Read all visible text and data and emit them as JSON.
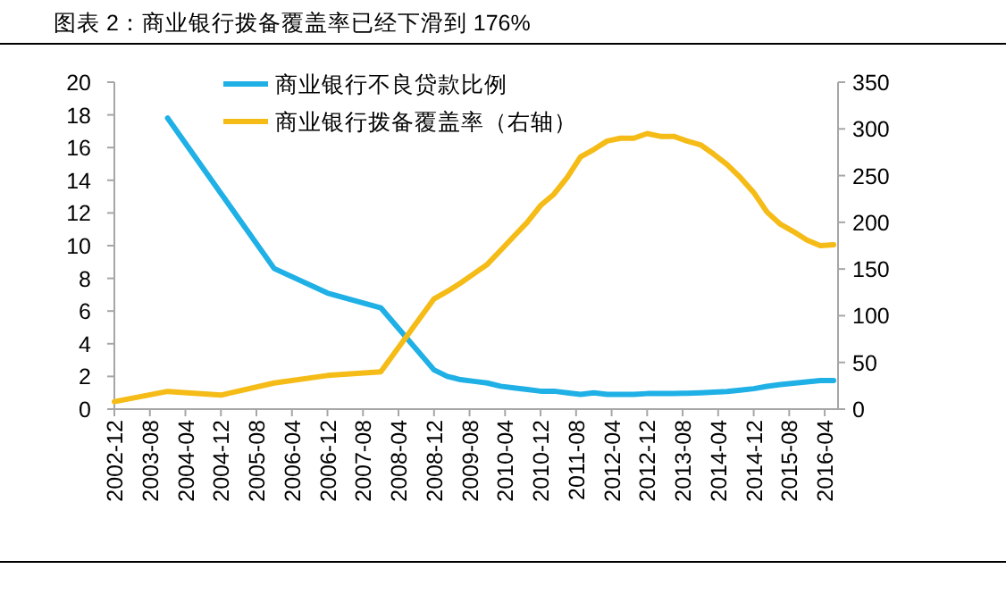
{
  "chart_data": {
    "type": "line",
    "title": "图表 2：商业银行拨备覆盖率已经下滑到 176%",
    "legend": "top",
    "grid": false,
    "marker": "none",
    "line_style": "solid",
    "xlim": [
      "2002-12",
      "2016-07"
    ],
    "xticks": [
      "2002-12",
      "2003-08",
      "2004-04",
      "2004-12",
      "2005-08",
      "2006-04",
      "2006-12",
      "2007-08",
      "2008-04",
      "2008-12",
      "2009-08",
      "2010-04",
      "2010-12",
      "2011-08",
      "2012-04",
      "2012-12",
      "2013-08",
      "2014-04",
      "2014-12",
      "2015-08",
      "2016-04"
    ],
    "ylim": [
      0,
      20
    ],
    "yticks": [
      0,
      2,
      4,
      6,
      8,
      10,
      12,
      14,
      16,
      18,
      20
    ],
    "y2lim": [
      0,
      350
    ],
    "y2ticks": [
      0,
      50,
      100,
      150,
      200,
      250,
      300,
      350
    ],
    "series": [
      {
        "name": "商业银行不良贷款比例",
        "color": "#1fb0e6",
        "x": [
          "2003-12",
          "2004-12",
          "2005-12",
          "2006-12",
          "2007-12",
          "2008-12",
          "2009-03",
          "2009-06",
          "2009-09",
          "2009-12",
          "2010-03",
          "2010-06",
          "2010-09",
          "2010-12",
          "2011-03",
          "2011-06",
          "2011-09",
          "2011-12",
          "2012-03",
          "2012-06",
          "2012-09",
          "2012-12",
          "2013-03",
          "2013-06",
          "2013-09",
          "2013-12",
          "2014-03",
          "2014-06",
          "2014-09",
          "2014-12",
          "2015-03",
          "2015-06",
          "2015-09",
          "2015-12",
          "2016-03",
          "2016-06"
        ],
        "values": [
          17.8,
          13.2,
          8.6,
          7.1,
          6.2,
          2.4,
          2.0,
          1.8,
          1.7,
          1.6,
          1.4,
          1.3,
          1.2,
          1.1,
          1.1,
          1.0,
          0.9,
          1.0,
          0.9,
          0.9,
          0.9,
          0.95,
          0.96,
          0.96,
          0.97,
          1.0,
          1.04,
          1.08,
          1.16,
          1.25,
          1.39,
          1.5,
          1.59,
          1.67,
          1.75,
          1.75
        ]
      },
      {
        "name": "商业银行拨备覆盖率（右轴）",
        "color": "#f5bb16",
        "axis": "y2",
        "x": [
          "2002-12",
          "2003-12",
          "2004-12",
          "2005-12",
          "2006-12",
          "2007-12",
          "2008-12",
          "2009-03",
          "2009-06",
          "2009-09",
          "2009-12",
          "2010-03",
          "2010-06",
          "2010-09",
          "2010-12",
          "2011-03",
          "2011-06",
          "2011-09",
          "2011-12",
          "2012-03",
          "2012-06",
          "2012-09",
          "2012-12",
          "2013-03",
          "2013-06",
          "2013-09",
          "2013-12",
          "2014-03",
          "2014-06",
          "2014-09",
          "2014-12",
          "2015-03",
          "2015-06",
          "2015-09",
          "2015-12",
          "2016-03",
          "2016-06"
        ],
        "values": [
          8,
          19,
          15,
          28,
          36,
          40,
          118,
          126,
          135,
          145,
          155,
          170,
          185,
          200,
          218,
          230,
          248,
          270,
          278,
          287,
          290,
          290,
          295,
          292,
          292,
          287,
          283,
          273,
          262,
          248,
          232,
          211,
          198,
          190,
          181,
          175,
          176
        ]
      }
    ]
  }
}
